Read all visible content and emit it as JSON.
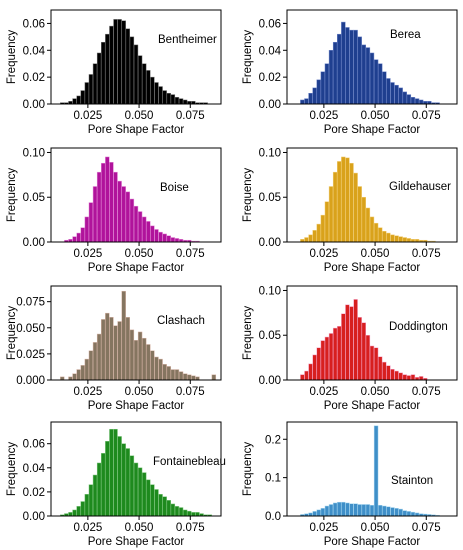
{
  "chart_data": [
    {
      "type": "bar",
      "title": "Bentheimer",
      "xlabel": "Pore Shape Factor",
      "ylabel": "Frequency",
      "xlim": [
        0.007,
        0.09
      ],
      "ylim": [
        0,
        0.07
      ],
      "xticks": [
        "0.025",
        "0.050",
        "0.075"
      ],
      "yticks": [
        "0.00",
        "0.02",
        "0.04",
        "0.06"
      ],
      "color": "#000000",
      "edgecolor": "#777777",
      "x": [
        0.0125,
        0.0145,
        0.0165,
        0.0185,
        0.0205,
        0.0225,
        0.0245,
        0.0265,
        0.0285,
        0.0305,
        0.0325,
        0.0345,
        0.0365,
        0.0385,
        0.0405,
        0.0425,
        0.0445,
        0.0465,
        0.0485,
        0.0505,
        0.0525,
        0.0545,
        0.0565,
        0.0585,
        0.0605,
        0.0625,
        0.0645,
        0.0665,
        0.0685,
        0.0705,
        0.0725,
        0.0745,
        0.0765,
        0.0785,
        0.0805,
        0.0825
      ],
      "values": [
        0.001,
        0.001,
        0.002,
        0.004,
        0.006,
        0.01,
        0.016,
        0.022,
        0.03,
        0.038,
        0.046,
        0.052,
        0.058,
        0.063,
        0.063,
        0.062,
        0.056,
        0.05,
        0.044,
        0.036,
        0.03,
        0.025,
        0.02,
        0.016,
        0.013,
        0.01,
        0.008,
        0.007,
        0.005,
        0.004,
        0.003,
        0.002,
        0.002,
        0.001,
        0.001,
        0.001
      ]
    },
    {
      "type": "bar",
      "title": "Berea",
      "xlabel": "Pore Shape Factor",
      "ylabel": "Frequency",
      "xlim": [
        0.007,
        0.09
      ],
      "ylim": [
        0,
        0.07
      ],
      "xticks": [
        "0.025",
        "0.050",
        "0.075"
      ],
      "yticks": [
        "0.00",
        "0.02",
        "0.04",
        "0.06"
      ],
      "color": "#1f3f8f",
      "edgecolor": "#6f86c8",
      "x": [
        0.0145,
        0.0165,
        0.0185,
        0.0205,
        0.0225,
        0.0245,
        0.0265,
        0.0285,
        0.0305,
        0.0325,
        0.0345,
        0.0365,
        0.0385,
        0.0405,
        0.0425,
        0.0445,
        0.0465,
        0.0485,
        0.0505,
        0.0525,
        0.0545,
        0.0565,
        0.0585,
        0.0605,
        0.0625,
        0.0645,
        0.0665,
        0.0685,
        0.0705,
        0.0725,
        0.0745,
        0.0765,
        0.0785,
        0.0805
      ],
      "values": [
        0.003,
        0.004,
        0.008,
        0.012,
        0.018,
        0.024,
        0.03,
        0.04,
        0.046,
        0.052,
        0.061,
        0.057,
        0.055,
        0.055,
        0.05,
        0.044,
        0.042,
        0.038,
        0.033,
        0.03,
        0.024,
        0.019,
        0.016,
        0.014,
        0.012,
        0.009,
        0.007,
        0.005,
        0.004,
        0.003,
        0.002,
        0.002,
        0.001,
        0.001
      ]
    },
    {
      "type": "bar",
      "title": "Boise",
      "xlabel": "Pore Shape Factor",
      "ylabel": "Frequency",
      "xlim": [
        0.007,
        0.09
      ],
      "ylim": [
        0,
        0.105
      ],
      "xticks": [
        "0.025",
        "0.050",
        "0.075"
      ],
      "yticks": [
        "0.00",
        "0.05",
        "0.10"
      ],
      "color": "#b0139b",
      "edgecolor": "#e28ad6",
      "x": [
        0.0145,
        0.0165,
        0.0185,
        0.0205,
        0.0225,
        0.0245,
        0.0265,
        0.0285,
        0.0305,
        0.0325,
        0.0345,
        0.0365,
        0.0385,
        0.0405,
        0.0425,
        0.0445,
        0.0465,
        0.0485,
        0.0505,
        0.0525,
        0.0545,
        0.0565,
        0.0585,
        0.0605,
        0.0625,
        0.0645,
        0.0665,
        0.0685,
        0.0705,
        0.0725,
        0.0745,
        0.0765,
        0.0785
      ],
      "values": [
        0.002,
        0.003,
        0.006,
        0.01,
        0.016,
        0.028,
        0.044,
        0.062,
        0.078,
        0.088,
        0.095,
        0.089,
        0.078,
        0.068,
        0.062,
        0.056,
        0.048,
        0.04,
        0.034,
        0.028,
        0.023,
        0.018,
        0.014,
        0.011,
        0.009,
        0.007,
        0.005,
        0.004,
        0.003,
        0.002,
        0.002,
        0.001,
        0.001
      ]
    },
    {
      "type": "bar",
      "title": "Gildehauser",
      "xlabel": "Pore Shape Factor",
      "ylabel": "Frequency",
      "xlim": [
        0.007,
        0.09
      ],
      "ylim": [
        0,
        0.105
      ],
      "xticks": [
        "0.025",
        "0.050",
        "0.075"
      ],
      "yticks": [
        "0.00",
        "0.05",
        "0.10"
      ],
      "color": "#d9a21b",
      "edgecolor": "#f2cf7a",
      "x": [
        0.0145,
        0.0165,
        0.0185,
        0.0205,
        0.0225,
        0.0245,
        0.0265,
        0.0285,
        0.0305,
        0.0325,
        0.0345,
        0.0365,
        0.0385,
        0.0405,
        0.0425,
        0.0445,
        0.0465,
        0.0485,
        0.0505,
        0.0525,
        0.0545,
        0.0565,
        0.0585,
        0.0605,
        0.0625,
        0.0645,
        0.0665,
        0.0685,
        0.0705,
        0.0725,
        0.0745,
        0.0765,
        0.0785
      ],
      "values": [
        0.003,
        0.005,
        0.008,
        0.013,
        0.02,
        0.03,
        0.045,
        0.062,
        0.078,
        0.09,
        0.095,
        0.094,
        0.088,
        0.077,
        0.062,
        0.05,
        0.038,
        0.028,
        0.021,
        0.016,
        0.012,
        0.01,
        0.008,
        0.007,
        0.006,
        0.005,
        0.004,
        0.003,
        0.003,
        0.002,
        0.002,
        0.001,
        0.001
      ]
    },
    {
      "type": "bar",
      "title": "Clashach",
      "xlabel": "Pore Shape Factor",
      "ylabel": "Frequency",
      "xlim": [
        0.007,
        0.09
      ],
      "ylim": [
        0,
        0.09
      ],
      "xticks": [
        "0.025",
        "0.050",
        "0.075"
      ],
      "yticks": [
        "0.000",
        "0.025",
        "0.050",
        "0.075"
      ],
      "color": "#857560",
      "edgecolor": "#d6b4a6",
      "x": [
        0.0125,
        0.0165,
        0.0185,
        0.0205,
        0.0225,
        0.0245,
        0.0265,
        0.0285,
        0.0305,
        0.0325,
        0.0345,
        0.0365,
        0.0385,
        0.0405,
        0.0425,
        0.0445,
        0.0465,
        0.0485,
        0.0505,
        0.0525,
        0.0545,
        0.0565,
        0.0585,
        0.0605,
        0.0625,
        0.0645,
        0.0665,
        0.0685,
        0.0705,
        0.0725,
        0.0745,
        0.0765,
        0.0785,
        0.0865
      ],
      "values": [
        0.003,
        0.003,
        0.006,
        0.01,
        0.014,
        0.02,
        0.028,
        0.036,
        0.044,
        0.058,
        0.064,
        0.06,
        0.052,
        0.056,
        0.085,
        0.06,
        0.048,
        0.038,
        0.046,
        0.04,
        0.034,
        0.028,
        0.022,
        0.02,
        0.015,
        0.013,
        0.01,
        0.01,
        0.008,
        0.006,
        0.005,
        0.004,
        0.003,
        0.005
      ]
    },
    {
      "type": "bar",
      "title": "Doddington",
      "xlabel": "Pore Shape Factor",
      "ylabel": "Frequency",
      "xlim": [
        0.007,
        0.09
      ],
      "ylim": [
        0,
        0.105
      ],
      "xticks": [
        "0.025",
        "0.050",
        "0.075"
      ],
      "yticks": [
        "0.00",
        "0.05",
        "0.10"
      ],
      "color": "#d71f1f",
      "edgecolor": "#f5a6c8",
      "x": [
        0.0145,
        0.0165,
        0.0185,
        0.0205,
        0.0225,
        0.0245,
        0.0265,
        0.0285,
        0.0305,
        0.0325,
        0.0345,
        0.0365,
        0.0385,
        0.0405,
        0.0425,
        0.0445,
        0.0465,
        0.0485,
        0.0505,
        0.0525,
        0.0545,
        0.0565,
        0.0585,
        0.0605,
        0.0625,
        0.0645,
        0.0665,
        0.0685,
        0.0705,
        0.0725,
        0.0745
      ],
      "values": [
        0.006,
        0.01,
        0.018,
        0.028,
        0.036,
        0.044,
        0.048,
        0.052,
        0.058,
        0.06,
        0.074,
        0.084,
        0.082,
        0.09,
        0.07,
        0.064,
        0.05,
        0.038,
        0.036,
        0.026,
        0.02,
        0.016,
        0.012,
        0.01,
        0.008,
        0.006,
        0.005,
        0.006,
        0.003,
        0.004,
        0.002
      ]
    },
    {
      "type": "bar",
      "title": "Fontainebleau",
      "xlabel": "Pore Shape Factor",
      "ylabel": "Frequency",
      "xlim": [
        0.007,
        0.09
      ],
      "ylim": [
        0,
        0.078
      ],
      "xticks": [
        "0.025",
        "0.050",
        "0.075"
      ],
      "yticks": [
        "0.00",
        "0.02",
        "0.04",
        "0.06"
      ],
      "color": "#1e8a1e",
      "edgecolor": "#7fc67f",
      "x": [
        0.0125,
        0.0145,
        0.0165,
        0.0185,
        0.0205,
        0.0225,
        0.0245,
        0.0265,
        0.0285,
        0.0305,
        0.0325,
        0.0345,
        0.0365,
        0.0385,
        0.0405,
        0.0425,
        0.0445,
        0.0465,
        0.0485,
        0.0505,
        0.0525,
        0.0545,
        0.0565,
        0.0585,
        0.0605,
        0.0625,
        0.0645,
        0.0665,
        0.0685,
        0.0705,
        0.0725,
        0.0745,
        0.0765,
        0.0785,
        0.0805,
        0.0825,
        0.0845
      ],
      "values": [
        0.001,
        0.002,
        0.003,
        0.005,
        0.008,
        0.012,
        0.018,
        0.026,
        0.034,
        0.044,
        0.052,
        0.062,
        0.072,
        0.072,
        0.066,
        0.06,
        0.056,
        0.05,
        0.044,
        0.04,
        0.036,
        0.03,
        0.026,
        0.022,
        0.018,
        0.016,
        0.013,
        0.01,
        0.008,
        0.007,
        0.005,
        0.004,
        0.003,
        0.003,
        0.002,
        0.001,
        0.001
      ]
    },
    {
      "type": "bar",
      "title": "Stainton",
      "xlabel": "Pore Shape Factor",
      "ylabel": "Frequency",
      "xlim": [
        0.007,
        0.09
      ],
      "ylim": [
        0,
        0.245
      ],
      "xticks": [
        "0.025",
        "0.050",
        "0.075"
      ],
      "yticks": [
        "0.0",
        "0.1",
        "0.2"
      ],
      "color": "#3f8fc8",
      "edgecolor": "#a5d6f0",
      "x": [
        0.0145,
        0.0165,
        0.0185,
        0.0205,
        0.0225,
        0.0245,
        0.0265,
        0.0285,
        0.0305,
        0.0325,
        0.0345,
        0.0365,
        0.0385,
        0.0405,
        0.0425,
        0.0445,
        0.0465,
        0.0485,
        0.0505,
        0.0525,
        0.0545,
        0.0565,
        0.0585,
        0.0605,
        0.0625,
        0.0645,
        0.0665,
        0.0685,
        0.0705,
        0.0725,
        0.0745,
        0.0765,
        0.0785,
        0.0805
      ],
      "values": [
        0.004,
        0.006,
        0.008,
        0.012,
        0.016,
        0.02,
        0.026,
        0.03,
        0.034,
        0.036,
        0.036,
        0.034,
        0.032,
        0.032,
        0.03,
        0.03,
        0.03,
        0.028,
        0.235,
        0.028,
        0.026,
        0.024,
        0.022,
        0.02,
        0.018,
        0.014,
        0.012,
        0.01,
        0.008,
        0.006,
        0.005,
        0.004,
        0.003,
        0.002
      ]
    }
  ]
}
